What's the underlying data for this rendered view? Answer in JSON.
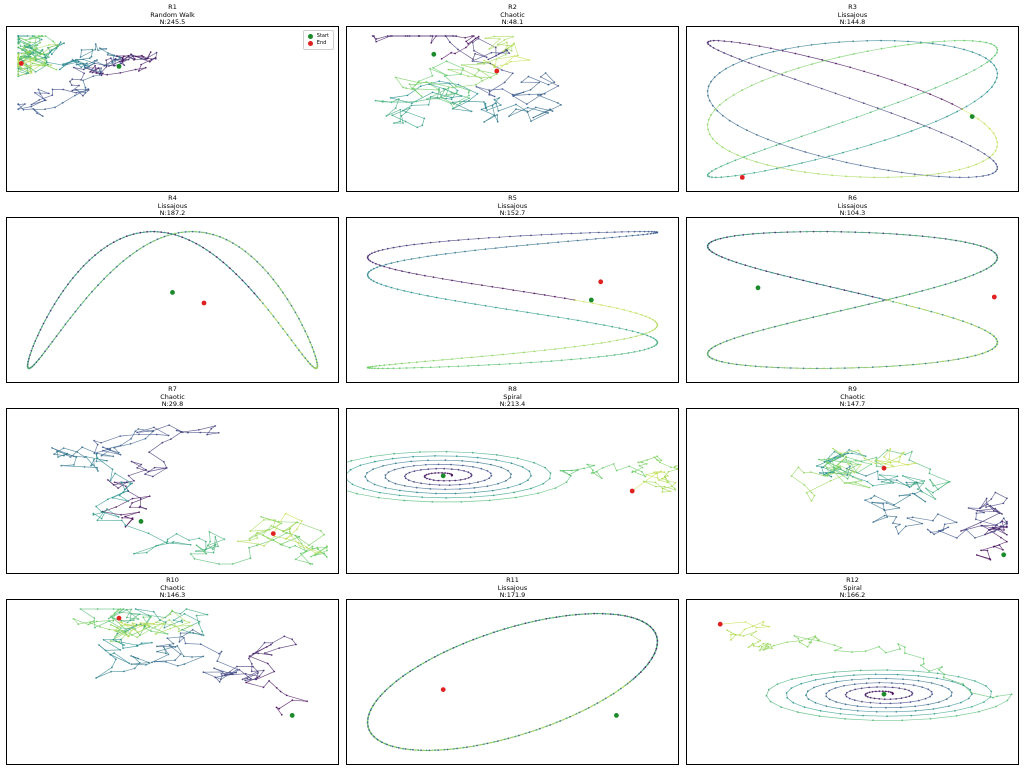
{
  "legend": {
    "start_label": "Start",
    "end_label": "End",
    "start_color": "#1a8a2a",
    "end_color": "#e02020"
  },
  "colormap": "viridis (early = dark blue/purple, late = yellow-green)",
  "panels": [
    {
      "id": "R1",
      "pattern": "Random Walk",
      "n_label": "N:245.5",
      "has_legend": true
    },
    {
      "id": "R2",
      "pattern": "Chaotic",
      "n_label": "N:48.1",
      "has_legend": false
    },
    {
      "id": "R3",
      "pattern": "Lissajous",
      "n_label": "N:144.8",
      "has_legend": false
    },
    {
      "id": "R4",
      "pattern": "Lissajous",
      "n_label": "N:187.2",
      "has_legend": false
    },
    {
      "id": "R5",
      "pattern": "Lissajous",
      "n_label": "N:152.7",
      "has_legend": false
    },
    {
      "id": "R6",
      "pattern": "Lissajous",
      "n_label": "N:104.3",
      "has_legend": false
    },
    {
      "id": "R7",
      "pattern": "Chaotic",
      "n_label": "N:29.8",
      "has_legend": false
    },
    {
      "id": "R8",
      "pattern": "Spiral",
      "n_label": "N:213.4",
      "has_legend": false
    },
    {
      "id": "R9",
      "pattern": "Chaotic",
      "n_label": "N:147.7",
      "has_legend": false
    },
    {
      "id": "R10",
      "pattern": "Chaotic",
      "n_label": "N:146.3",
      "has_legend": false
    },
    {
      "id": "R11",
      "pattern": "Lissajous",
      "n_label": "N:171.9",
      "has_legend": false
    },
    {
      "id": "R12",
      "pattern": "Spiral",
      "n_label": "N:166.2",
      "has_legend": false
    }
  ],
  "chart_data": {
    "type": "line",
    "grid": false,
    "legend_placement": "top-right of R1",
    "series": [
      {
        "name": "R1",
        "pattern": "Random Walk",
        "start": [
          0.33,
          0.78
        ],
        "end": [
          0.02,
          0.8
        ]
      },
      {
        "name": "R2",
        "pattern": "Chaotic",
        "start": [
          0.25,
          0.86
        ],
        "end": [
          0.45,
          0.75
        ]
      },
      {
        "name": "R3",
        "pattern": "Lissajous",
        "start": [
          0.88,
          0.45
        ],
        "end": [
          0.15,
          0.05
        ]
      },
      {
        "name": "R4",
        "pattern": "Lissajous",
        "start": [
          0.5,
          0.55
        ],
        "end": [
          0.6,
          0.48
        ]
      },
      {
        "name": "R5",
        "pattern": "Lissajous",
        "start": [
          0.75,
          0.5
        ],
        "end": [
          0.78,
          0.62
        ]
      },
      {
        "name": "R6",
        "pattern": "Lissajous",
        "start": [
          0.2,
          0.58
        ],
        "end": [
          0.95,
          0.52
        ]
      },
      {
        "name": "R7",
        "pattern": "Chaotic",
        "start": [
          0.4,
          0.3
        ],
        "end": [
          0.82,
          0.22
        ]
      },
      {
        "name": "R8",
        "pattern": "Spiral",
        "start": [
          0.28,
          0.6
        ],
        "end": [
          0.88,
          0.5
        ]
      },
      {
        "name": "R9",
        "pattern": "Chaotic",
        "start": [
          0.98,
          0.08
        ],
        "end": [
          0.6,
          0.65
        ]
      },
      {
        "name": "R10",
        "pattern": "Chaotic",
        "start": [
          0.88,
          0.28
        ],
        "end": [
          0.33,
          0.92
        ]
      },
      {
        "name": "R11",
        "pattern": "Lissajous",
        "start": [
          0.83,
          0.28
        ],
        "end": [
          0.28,
          0.45
        ]
      },
      {
        "name": "R12",
        "pattern": "Spiral",
        "start": [
          0.6,
          0.42
        ],
        "end": [
          0.08,
          0.88
        ]
      }
    ]
  }
}
